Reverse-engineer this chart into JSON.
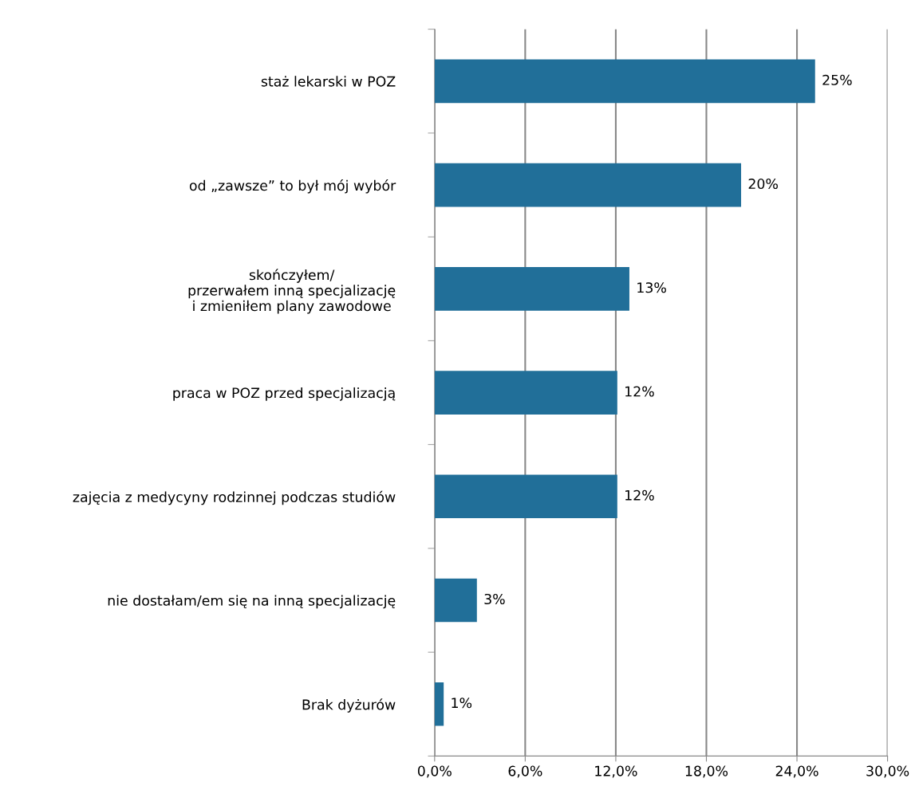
{
  "chart_data": {
    "type": "bar",
    "orientation": "horizontal",
    "categories": [
      "staż lekarski w POZ",
      "od „zawsze” to był mój wybór",
      "skończyłem/\nprzerwałem inną specjalizację\ni zmieniłem plany zawodowe",
      "praca w POZ przed specjalizacją",
      "zajęcia z medycyny rodzinnej podczas studiów",
      "nie dostałam/em się na inną specjalizację",
      "Brak dyżurów"
    ],
    "values": [
      25.2,
      20.3,
      12.9,
      12.1,
      12.1,
      2.8,
      0.6
    ],
    "value_labels": [
      "25%",
      "20%",
      "13%",
      "12%",
      "12%",
      "3%",
      "1%"
    ],
    "color": "#216f99",
    "xlim": [
      0,
      30
    ],
    "xticks": [
      {
        "value": 0,
        "label": "0,0%"
      },
      {
        "value": 6,
        "label": "6,0%"
      },
      {
        "value": 12,
        "label": "12,0%"
      },
      {
        "value": 18,
        "label": "18,0%"
      },
      {
        "value": 24,
        "label": "24,0%"
      },
      {
        "value": 30,
        "label": "30,0%"
      }
    ],
    "grid": "x",
    "legend": false
  }
}
